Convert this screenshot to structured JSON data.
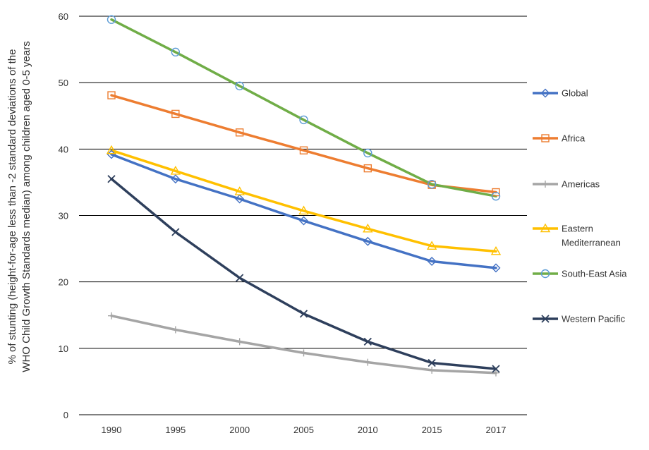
{
  "chart_data": {
    "type": "line",
    "title": "",
    "xlabel": "",
    "ylabel_lines": [
      "% of stunting (height-for-age less than -2 standard deviations of the",
      "WHO Child Growth Standards median) among children aged 0-5 years"
    ],
    "categories": [
      "1990",
      "1995",
      "2000",
      "2005",
      "2010",
      "2015",
      "2017"
    ],
    "ylim": [
      0,
      60
    ],
    "yticks": [
      0,
      10,
      20,
      30,
      40,
      50,
      60
    ],
    "grid": "horizontal",
    "legend_position": "right",
    "series": [
      {
        "name": "Global",
        "color": "#4472c4",
        "marker": "diamond",
        "values": [
          39.2,
          35.5,
          32.5,
          29.2,
          26.1,
          23.1,
          22.1
        ]
      },
      {
        "name": "Africa",
        "color": "#ed7d31",
        "marker": "square",
        "values": [
          48.1,
          45.3,
          42.5,
          39.8,
          37.1,
          34.6,
          33.5
        ]
      },
      {
        "name": "Americas",
        "color": "#a5a5a5",
        "marker": "plus",
        "values": [
          14.9,
          12.8,
          11.0,
          9.3,
          7.9,
          6.7,
          6.3
        ]
      },
      {
        "name": "Eastern Mediterranean",
        "legend_lines": [
          "Eastern",
          "Mediterranean"
        ],
        "color": "#ffc000",
        "marker": "triangle",
        "values": [
          39.8,
          36.7,
          33.6,
          30.7,
          28.0,
          25.4,
          24.6
        ]
      },
      {
        "name": "South-East Asia",
        "color": "#70ad47",
        "line_color": "#70ad47",
        "marker_color": "#5b9bd5",
        "marker": "circle",
        "values": [
          59.5,
          54.6,
          49.5,
          44.4,
          39.4,
          34.7,
          32.9
        ]
      },
      {
        "name": "Western Pacific",
        "color": "#2e3f5c",
        "marker": "x",
        "values": [
          35.5,
          27.5,
          20.6,
          15.2,
          11.0,
          7.8,
          6.9
        ]
      }
    ]
  }
}
